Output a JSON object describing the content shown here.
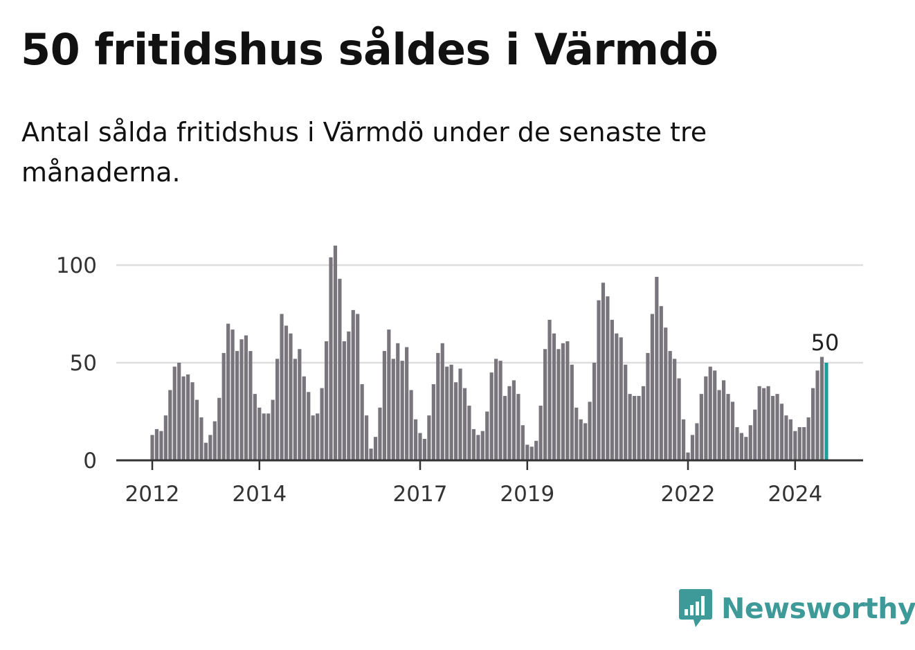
{
  "chart_data": {
    "type": "bar",
    "title": "50 fritidshus såldes i Värmdö",
    "subtitle": "Antal sålda fritidshus i Värmdö under de senaste tre månaderna.",
    "xlabel": "",
    "ylabel": "",
    "ylim": [
      0,
      110
    ],
    "y_ticks": [
      0,
      50,
      100
    ],
    "x_ticks": [
      {
        "label": "2012",
        "index": 0
      },
      {
        "label": "2014",
        "index": 24
      },
      {
        "label": "2017",
        "index": 60
      },
      {
        "label": "2019",
        "index": 84
      },
      {
        "label": "2022",
        "index": 120
      },
      {
        "label": "2024",
        "index": 144
      }
    ],
    "grid": true,
    "colors": {
      "bar": "#78767c",
      "highlight": "#1a9e9a",
      "grid": "#dddddd",
      "axis": "#333333"
    },
    "values": [
      13,
      16,
      15,
      23,
      36,
      48,
      50,
      43,
      44,
      40,
      31,
      22,
      9,
      13,
      20,
      32,
      55,
      70,
      67,
      56,
      62,
      64,
      56,
      34,
      27,
      24,
      24,
      31,
      52,
      75,
      69,
      65,
      52,
      57,
      43,
      35,
      23,
      24,
      37,
      61,
      104,
      110,
      93,
      61,
      66,
      77,
      75,
      39,
      23,
      6,
      12,
      27,
      56,
      67,
      52,
      60,
      51,
      58,
      36,
      21,
      14,
      11,
      23,
      39,
      55,
      60,
      48,
      49,
      40,
      47,
      37,
      28,
      16,
      13,
      15,
      25,
      45,
      52,
      51,
      33,
      38,
      41,
      34,
      18,
      8,
      7,
      10,
      28,
      57,
      72,
      65,
      57,
      60,
      61,
      49,
      27,
      21,
      19,
      30,
      50,
      82,
      91,
      84,
      72,
      65,
      63,
      49,
      34,
      33,
      33,
      38,
      55,
      75,
      94,
      79,
      68,
      56,
      52,
      42,
      21,
      4,
      13,
      19,
      34,
      43,
      48,
      46,
      36,
      41,
      34,
      30,
      17,
      14,
      12,
      18,
      26,
      38,
      37,
      38,
      33,
      34,
      29,
      23,
      21,
      15,
      17,
      17,
      22,
      37,
      46,
      53,
      50
    ],
    "highlight_value_label": "50",
    "source": "Newsworthy"
  }
}
